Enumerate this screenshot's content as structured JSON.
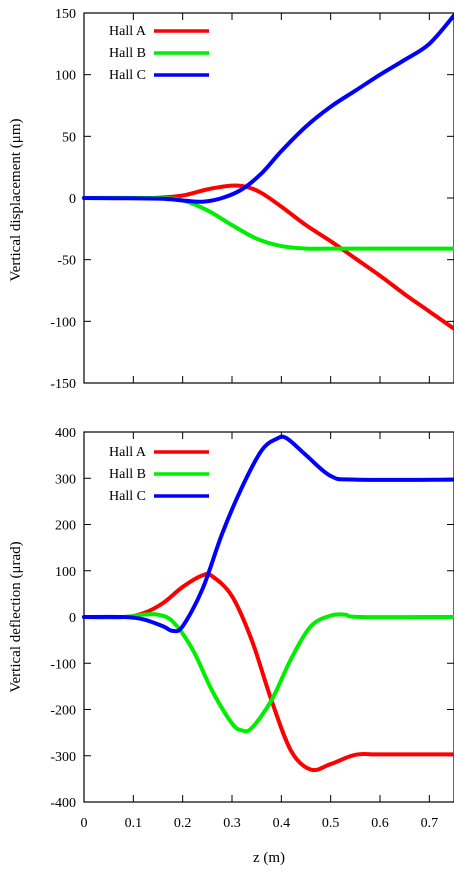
{
  "chart_data": [
    {
      "type": "line",
      "title": "",
      "xlabel": "",
      "ylabel": "Vertical displacement (μm)",
      "xlim": [
        0,
        0.75
      ],
      "ylim": [
        -150,
        150
      ],
      "xticks": [
        0,
        0.1,
        0.2,
        0.3,
        0.4,
        0.5,
        0.6,
        0.7
      ],
      "xtick_labels_visible": false,
      "yticks": [
        -150,
        -100,
        -50,
        0,
        50,
        100,
        150
      ],
      "grid": false,
      "legend_position": "top-left",
      "series": [
        {
          "name": "Hall A",
          "color": "#ff0000",
          "points": [
            [
              0,
              0
            ],
            [
              0.1,
              0
            ],
            [
              0.15,
              0.2
            ],
            [
              0.2,
              2
            ],
            [
              0.25,
              7
            ],
            [
              0.3,
              10
            ],
            [
              0.33,
              9
            ],
            [
              0.36,
              4
            ],
            [
              0.4,
              -7
            ],
            [
              0.45,
              -22
            ],
            [
              0.5,
              -35
            ],
            [
              0.55,
              -49
            ],
            [
              0.6,
              -63
            ],
            [
              0.65,
              -78
            ],
            [
              0.7,
              -92
            ],
            [
              0.75,
              -106
            ]
          ]
        },
        {
          "name": "Hall B",
          "color": "#00ee00",
          "points": [
            [
              0,
              0
            ],
            [
              0.15,
              0
            ],
            [
              0.2,
              -2
            ],
            [
              0.25,
              -10
            ],
            [
              0.3,
              -22
            ],
            [
              0.35,
              -33
            ],
            [
              0.4,
              -39
            ],
            [
              0.45,
              -41
            ],
            [
              0.5,
              -41
            ],
            [
              0.75,
              -41
            ]
          ]
        },
        {
          "name": "Hall C",
          "color": "#0000ff",
          "points": [
            [
              0,
              0
            ],
            [
              0.15,
              -0.5
            ],
            [
              0.2,
              -2
            ],
            [
              0.24,
              -3
            ],
            [
              0.28,
              0
            ],
            [
              0.32,
              7
            ],
            [
              0.36,
              20
            ],
            [
              0.4,
              38
            ],
            [
              0.45,
              58
            ],
            [
              0.5,
              74
            ],
            [
              0.55,
              87
            ],
            [
              0.6,
              100
            ],
            [
              0.65,
              112
            ],
            [
              0.7,
              125
            ],
            [
              0.75,
              148
            ]
          ]
        }
      ]
    },
    {
      "type": "line",
      "title": "",
      "xlabel": "z (m)",
      "ylabel": "Vertical deflection (μrad)",
      "xlim": [
        0,
        0.75
      ],
      "ylim": [
        -400,
        400
      ],
      "xticks": [
        0,
        0.1,
        0.2,
        0.3,
        0.4,
        0.5,
        0.6,
        0.7
      ],
      "xtick_labels_visible": true,
      "yticks": [
        -400,
        -300,
        -200,
        -100,
        0,
        100,
        200,
        300,
        400
      ],
      "grid": false,
      "legend_position": "top-left",
      "series": [
        {
          "name": "Hall A",
          "color": "#ff0000",
          "points": [
            [
              0,
              0
            ],
            [
              0.08,
              0
            ],
            [
              0.12,
              8
            ],
            [
              0.16,
              30
            ],
            [
              0.2,
              65
            ],
            [
              0.24,
              90
            ],
            [
              0.26,
              88
            ],
            [
              0.3,
              45
            ],
            [
              0.34,
              -50
            ],
            [
              0.38,
              -180
            ],
            [
              0.42,
              -290
            ],
            [
              0.46,
              -330
            ],
            [
              0.5,
              -318
            ],
            [
              0.55,
              -298
            ],
            [
              0.6,
              -297
            ],
            [
              0.75,
              -297
            ]
          ]
        },
        {
          "name": "Hall B",
          "color": "#00ee00",
          "points": [
            [
              0,
              0
            ],
            [
              0.08,
              0
            ],
            [
              0.12,
              5
            ],
            [
              0.15,
              5
            ],
            [
              0.18,
              -10
            ],
            [
              0.22,
              -70
            ],
            [
              0.26,
              -160
            ],
            [
              0.3,
              -230
            ],
            [
              0.32,
              -245
            ],
            [
              0.34,
              -240
            ],
            [
              0.38,
              -180
            ],
            [
              0.42,
              -90
            ],
            [
              0.46,
              -20
            ],
            [
              0.5,
              3
            ],
            [
              0.53,
              5
            ],
            [
              0.56,
              0
            ],
            [
              0.75,
              0
            ]
          ]
        },
        {
          "name": "Hall C",
          "color": "#0000ff",
          "points": [
            [
              0,
              0
            ],
            [
              0.08,
              0
            ],
            [
              0.12,
              -5
            ],
            [
              0.16,
              -20
            ],
            [
              0.18,
              -30
            ],
            [
              0.2,
              -20
            ],
            [
              0.24,
              60
            ],
            [
              0.28,
              180
            ],
            [
              0.32,
              280
            ],
            [
              0.36,
              360
            ],
            [
              0.39,
              385
            ],
            [
              0.41,
              387
            ],
            [
              0.45,
              350
            ],
            [
              0.5,
              305
            ],
            [
              0.55,
              297
            ],
            [
              0.75,
              297
            ]
          ]
        }
      ]
    }
  ]
}
